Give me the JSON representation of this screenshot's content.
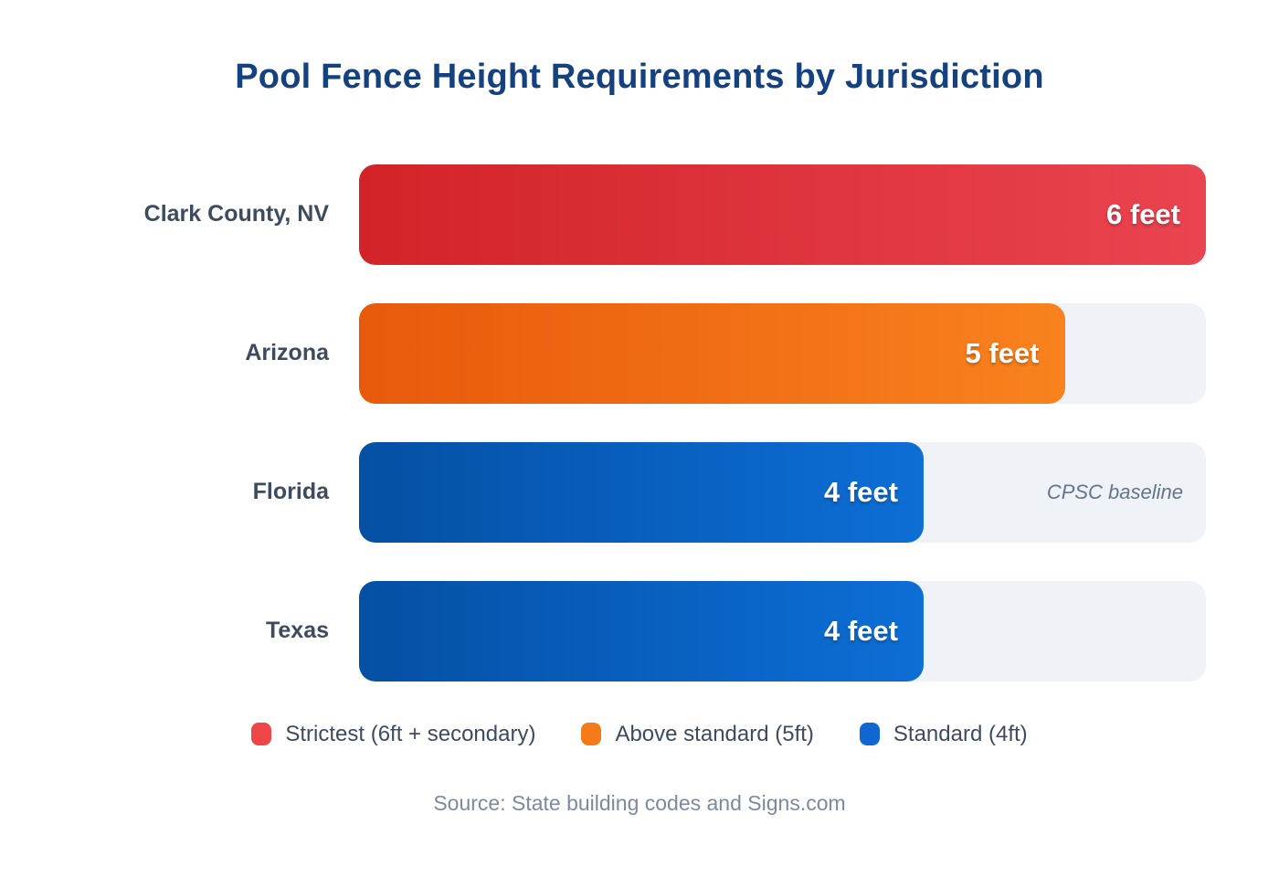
{
  "title": "Pool Fence Height Requirements by Jurisdiction",
  "chart_data": {
    "type": "bar",
    "orientation": "horizontal",
    "title": "Pool Fence Height Requirements by Jurisdiction",
    "unit": "feet",
    "value_axis_max": 6,
    "grid": false,
    "legend_position": "bottom",
    "categories": [
      "Clark County, NV",
      "Arizona",
      "Florida",
      "Texas"
    ],
    "values": [
      6,
      5,
      4,
      4
    ],
    "rows": [
      {
        "label": "Clark County, NV",
        "value": 6,
        "value_label": "6 feet",
        "note": "",
        "color_start": "#d22328",
        "color_end": "#ea4450"
      },
      {
        "label": "Arizona",
        "value": 5,
        "value_label": "5 feet",
        "note": "",
        "color_start": "#e8590c",
        "color_end": "#f9821e"
      },
      {
        "label": "Florida",
        "value": 4,
        "value_label": "4 feet",
        "note": "CPSC baseline",
        "color_start": "#0450a4",
        "color_end": "#0d6ed6"
      },
      {
        "label": "Texas",
        "value": 4,
        "value_label": "4 feet",
        "note": "",
        "color_start": "#0450a4",
        "color_end": "#0d6ed6"
      }
    ],
    "legend": [
      {
        "label": "Strictest (6ft + secondary)",
        "color": "#ee4547"
      },
      {
        "label": "Above standard (5ft)",
        "color": "#f47b17"
      },
      {
        "label": "Standard (4ft)",
        "color": "#1067d2"
      }
    ],
    "source": "Source: State building codes and Signs.com"
  },
  "colors": {
    "title": "#15417e",
    "row_label": "#3d4b5f",
    "track": "#eff2f7",
    "note": "#64748b",
    "source": "#7b8a9e"
  }
}
